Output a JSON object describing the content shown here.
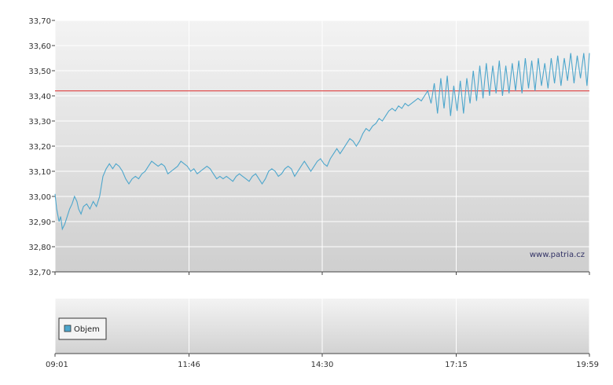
{
  "watermark": "www.patria.cz",
  "volume_legend": "Objem",
  "colors": {
    "line": "#4da6cc",
    "reference": "#e05050",
    "grid": "#ffffff",
    "legend_swatch": "#4da6cc"
  },
  "chart_data": {
    "type": "line",
    "title": "",
    "xlabel": "",
    "ylabel": "",
    "ylim": [
      32.7,
      33.7
    ],
    "y_ticks": [
      "33,70",
      "33,60",
      "33,50",
      "33,40",
      "33,30",
      "33,20",
      "33,10",
      "33,00",
      "32,90",
      "32,80",
      "32,70"
    ],
    "x_ticks": [
      "09:01",
      "11:46",
      "14:30",
      "17:15",
      "19:59"
    ],
    "x_range": [
      "09:01",
      "19:59"
    ],
    "reference_line": 33.42,
    "grid": true,
    "series": [
      {
        "values": [
          [
            "09:01",
            33.01
          ],
          [
            "09:03",
            32.95
          ],
          [
            "09:06",
            32.9
          ],
          [
            "09:08",
            32.92
          ],
          [
            "09:10",
            32.87
          ],
          [
            "09:13",
            32.89
          ],
          [
            "09:16",
            32.92
          ],
          [
            "09:19",
            32.95
          ],
          [
            "09:22",
            32.97
          ],
          [
            "09:25",
            33.0
          ],
          [
            "09:28",
            32.98
          ],
          [
            "09:30",
            32.95
          ],
          [
            "09:33",
            32.93
          ],
          [
            "09:36",
            32.96
          ],
          [
            "09:40",
            32.97
          ],
          [
            "09:44",
            32.95
          ],
          [
            "09:48",
            32.98
          ],
          [
            "09:52",
            32.96
          ],
          [
            "09:56",
            33.0
          ],
          [
            "09:58",
            33.04
          ],
          [
            "10:00",
            33.08
          ],
          [
            "10:04",
            33.11
          ],
          [
            "10:08",
            33.13
          ],
          [
            "10:12",
            33.11
          ],
          [
            "10:16",
            33.13
          ],
          [
            "10:20",
            33.12
          ],
          [
            "10:24",
            33.1
          ],
          [
            "10:28",
            33.07
          ],
          [
            "10:32",
            33.05
          ],
          [
            "10:36",
            33.07
          ],
          [
            "10:40",
            33.08
          ],
          [
            "10:44",
            33.07
          ],
          [
            "10:48",
            33.09
          ],
          [
            "10:52",
            33.1
          ],
          [
            "10:56",
            33.12
          ],
          [
            "11:00",
            33.14
          ],
          [
            "11:04",
            33.13
          ],
          [
            "11:08",
            33.12
          ],
          [
            "11:12",
            33.13
          ],
          [
            "11:16",
            33.12
          ],
          [
            "11:20",
            33.09
          ],
          [
            "11:24",
            33.1
          ],
          [
            "11:28",
            33.11
          ],
          [
            "11:32",
            33.12
          ],
          [
            "11:36",
            33.14
          ],
          [
            "11:40",
            33.13
          ],
          [
            "11:44",
            33.12
          ],
          [
            "11:48",
            33.1
          ],
          [
            "11:52",
            33.11
          ],
          [
            "11:56",
            33.09
          ],
          [
            "12:00",
            33.1
          ],
          [
            "12:04",
            33.11
          ],
          [
            "12:08",
            33.12
          ],
          [
            "12:12",
            33.11
          ],
          [
            "12:16",
            33.09
          ],
          [
            "12:20",
            33.07
          ],
          [
            "12:24",
            33.08
          ],
          [
            "12:28",
            33.07
          ],
          [
            "12:32",
            33.08
          ],
          [
            "12:36",
            33.07
          ],
          [
            "12:40",
            33.06
          ],
          [
            "12:44",
            33.08
          ],
          [
            "12:48",
            33.09
          ],
          [
            "12:52",
            33.08
          ],
          [
            "12:56",
            33.07
          ],
          [
            "13:00",
            33.06
          ],
          [
            "13:04",
            33.08
          ],
          [
            "13:08",
            33.09
          ],
          [
            "13:12",
            33.07
          ],
          [
            "13:16",
            33.05
          ],
          [
            "13:20",
            33.07
          ],
          [
            "13:24",
            33.1
          ],
          [
            "13:28",
            33.11
          ],
          [
            "13:32",
            33.1
          ],
          [
            "13:36",
            33.08
          ],
          [
            "13:40",
            33.09
          ],
          [
            "13:44",
            33.11
          ],
          [
            "13:48",
            33.12
          ],
          [
            "13:52",
            33.11
          ],
          [
            "13:56",
            33.08
          ],
          [
            "14:00",
            33.1
          ],
          [
            "14:04",
            33.12
          ],
          [
            "14:08",
            33.14
          ],
          [
            "14:12",
            33.12
          ],
          [
            "14:16",
            33.1
          ],
          [
            "14:20",
            33.12
          ],
          [
            "14:24",
            33.14
          ],
          [
            "14:28",
            33.15
          ],
          [
            "14:32",
            33.13
          ],
          [
            "14:36",
            33.12
          ],
          [
            "14:40",
            33.15
          ],
          [
            "14:44",
            33.17
          ],
          [
            "14:48",
            33.19
          ],
          [
            "14:52",
            33.17
          ],
          [
            "14:56",
            33.19
          ],
          [
            "15:00",
            33.21
          ],
          [
            "15:04",
            33.23
          ],
          [
            "15:08",
            33.22
          ],
          [
            "15:12",
            33.2
          ],
          [
            "15:16",
            33.22
          ],
          [
            "15:20",
            33.25
          ],
          [
            "15:24",
            33.27
          ],
          [
            "15:28",
            33.26
          ],
          [
            "15:32",
            33.28
          ],
          [
            "15:36",
            33.29
          ],
          [
            "15:40",
            33.31
          ],
          [
            "15:44",
            33.3
          ],
          [
            "15:48",
            33.32
          ],
          [
            "15:52",
            33.34
          ],
          [
            "15:56",
            33.35
          ],
          [
            "16:00",
            33.34
          ],
          [
            "16:04",
            33.36
          ],
          [
            "16:08",
            33.35
          ],
          [
            "16:12",
            33.37
          ],
          [
            "16:16",
            33.36
          ],
          [
            "16:20",
            33.37
          ],
          [
            "16:24",
            33.38
          ],
          [
            "16:28",
            33.39
          ],
          [
            "16:32",
            33.38
          ],
          [
            "16:36",
            33.4
          ],
          [
            "16:40",
            33.42
          ],
          [
            "16:44",
            33.37
          ],
          [
            "16:48",
            33.45
          ],
          [
            "16:52",
            33.33
          ],
          [
            "16:56",
            33.47
          ],
          [
            "17:00",
            33.35
          ],
          [
            "17:04",
            33.48
          ],
          [
            "17:08",
            33.32
          ],
          [
            "17:12",
            33.44
          ],
          [
            "17:16",
            33.34
          ],
          [
            "17:20",
            33.46
          ],
          [
            "17:24",
            33.33
          ],
          [
            "17:28",
            33.47
          ],
          [
            "17:32",
            33.37
          ],
          [
            "17:36",
            33.5
          ],
          [
            "17:40",
            33.38
          ],
          [
            "17:44",
            33.52
          ],
          [
            "17:48",
            33.39
          ],
          [
            "17:52",
            33.53
          ],
          [
            "17:56",
            33.4
          ],
          [
            "18:00",
            33.52
          ],
          [
            "18:04",
            33.41
          ],
          [
            "18:08",
            33.54
          ],
          [
            "18:12",
            33.4
          ],
          [
            "18:16",
            33.52
          ],
          [
            "18:20",
            33.41
          ],
          [
            "18:24",
            33.53
          ],
          [
            "18:28",
            33.42
          ],
          [
            "18:32",
            33.54
          ],
          [
            "18:36",
            33.41
          ],
          [
            "18:40",
            33.55
          ],
          [
            "18:44",
            33.43
          ],
          [
            "18:48",
            33.54
          ],
          [
            "18:52",
            33.42
          ],
          [
            "18:56",
            33.55
          ],
          [
            "19:00",
            33.44
          ],
          [
            "19:04",
            33.53
          ],
          [
            "19:08",
            33.43
          ],
          [
            "19:12",
            33.55
          ],
          [
            "19:16",
            33.45
          ],
          [
            "19:20",
            33.56
          ],
          [
            "19:24",
            33.44
          ],
          [
            "19:28",
            33.55
          ],
          [
            "19:32",
            33.46
          ],
          [
            "19:36",
            33.57
          ],
          [
            "19:40",
            33.45
          ],
          [
            "19:44",
            33.56
          ],
          [
            "19:48",
            33.47
          ],
          [
            "19:52",
            33.57
          ],
          [
            "19:56",
            33.44
          ],
          [
            "19:59",
            33.57
          ]
        ]
      }
    ]
  }
}
